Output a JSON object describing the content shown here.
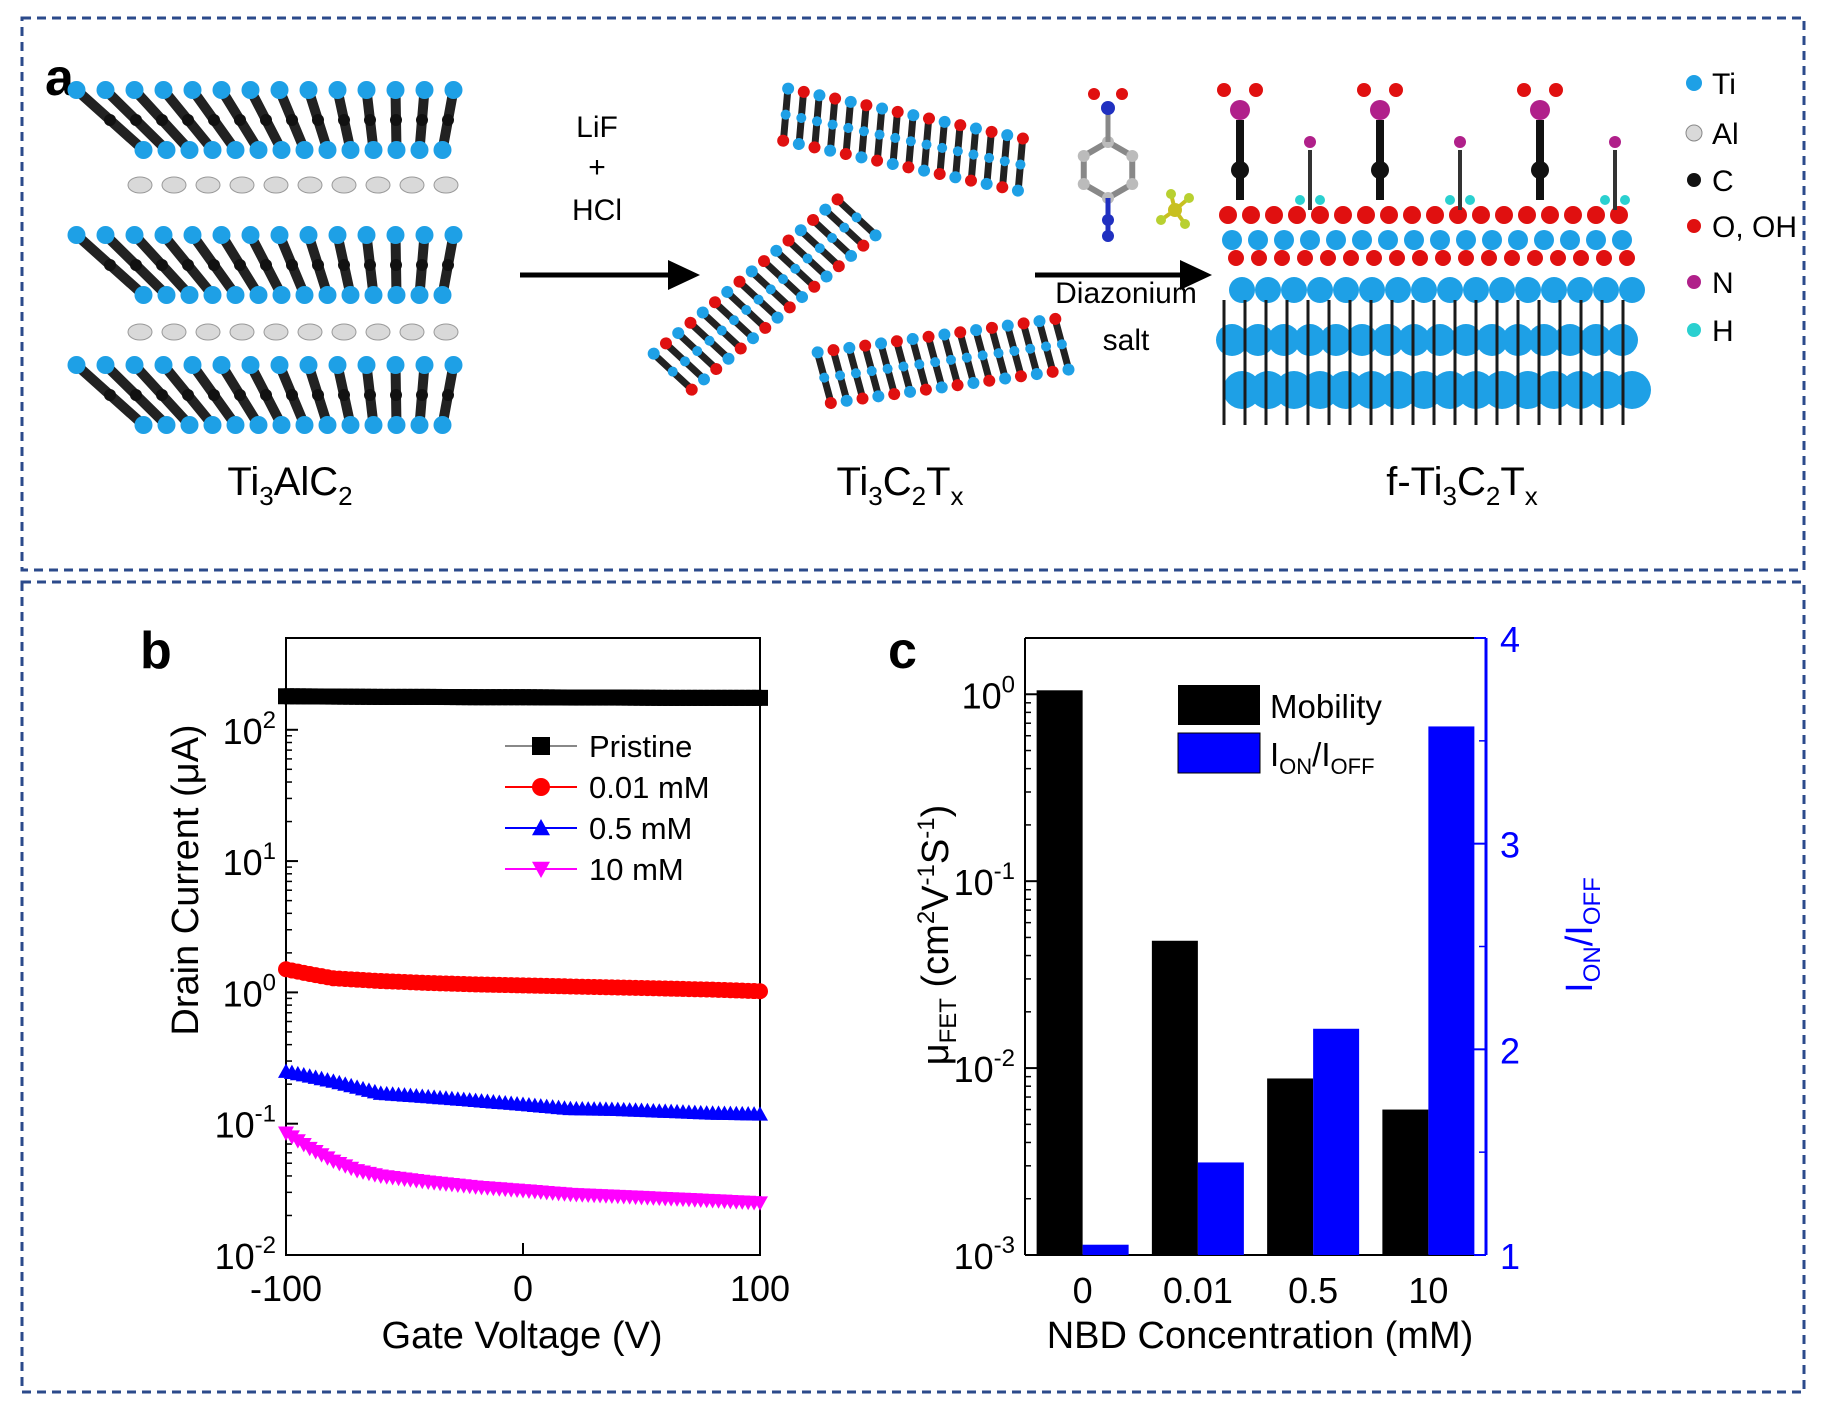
{
  "colors": {
    "frame": "#2b4a8b",
    "ti": "#1ea0e6",
    "al": "#d9d9d9",
    "c": "#111111",
    "o": "#e01010",
    "n": "#b0208a",
    "h": "#2ad0d0",
    "pristine": "#000000",
    "c001": "#ff0000",
    "c05": "#0000ff",
    "c10": "#ff00ff",
    "mobility": "#000000",
    "onoff": "#0000ff"
  },
  "panel_a": {
    "label": "a",
    "step1": {
      "line1": "LiF",
      "line2": "+",
      "line3": "HCl"
    },
    "step2": {
      "line1": "Diazonium",
      "line2": "salt"
    },
    "materials": {
      "m1": {
        "base": "Ti",
        "sub1": "3",
        "mid": "AlC",
        "sub2": "2",
        "text": "Ti3AlC2"
      },
      "m2": {
        "base": "Ti",
        "sub1": "3",
        "mid": "C",
        "sub2": "2",
        "mid2": "T",
        "sub3": "x",
        "text": "Ti3C2Tx"
      },
      "m3": {
        "base": "f-Ti",
        "sub1": "3",
        "mid": "C",
        "sub2": "2",
        "mid2": "T",
        "sub3": "x",
        "text": "f-Ti3C2Tx"
      }
    },
    "legend": [
      {
        "label": "Ti",
        "color": "#1ea0e6"
      },
      {
        "label": "Al",
        "color": "#d9d9d9"
      },
      {
        "label": "C",
        "color": "#111111"
      },
      {
        "label": "O, OH",
        "color": "#e01010"
      },
      {
        "label": "N",
        "color": "#b0208a"
      },
      {
        "label": "H",
        "color": "#2ad0d0"
      }
    ]
  },
  "chart_data": [
    {
      "panel": "b",
      "type": "line",
      "label": "b",
      "title": "",
      "xlabel": "Gate Voltage (V)",
      "ylabel": "Drain Current (μA)",
      "yscale": "log",
      "xlim": [
        -100,
        100
      ],
      "ylim": [
        0.01,
        500
      ],
      "xticks": [
        -100,
        0,
        100
      ],
      "xtick_labels": [
        "-100",
        "0",
        "100"
      ],
      "yticks": [
        0.01,
        0.1,
        1,
        10,
        100
      ],
      "ytick_base": "10",
      "ytick_exponents": [
        "-2",
        "-1",
        "0",
        "1",
        "2"
      ],
      "legend_position": "top-right",
      "series": [
        {
          "name": "Pristine",
          "marker": "square",
          "color": "#000000",
          "x": [
            -100,
            -80,
            -60,
            -40,
            -20,
            0,
            20,
            40,
            60,
            80,
            100
          ],
          "y": [
            180,
            179,
            178,
            178,
            177,
            177,
            176,
            176,
            175,
            175,
            175
          ]
        },
        {
          "name": "0.01 mM",
          "marker": "circle",
          "color": "#ff0000",
          "x": [
            -100,
            -90,
            -80,
            -60,
            -40,
            -20,
            0,
            20,
            40,
            60,
            80,
            100
          ],
          "y": [
            1.5,
            1.38,
            1.28,
            1.22,
            1.18,
            1.15,
            1.13,
            1.11,
            1.09,
            1.07,
            1.05,
            1.02
          ]
        },
        {
          "name": "0.5 mM",
          "marker": "triangle-up",
          "color": "#0000ff",
          "x": [
            -100,
            -90,
            -80,
            -60,
            -40,
            -20,
            0,
            20,
            40,
            60,
            80,
            100
          ],
          "y": [
            0.25,
            0.23,
            0.21,
            0.17,
            0.16,
            0.15,
            0.14,
            0.13,
            0.128,
            0.124,
            0.12,
            0.118
          ]
        },
        {
          "name": "10 mM",
          "marker": "triangle-down",
          "color": "#ff00ff",
          "x": [
            -100,
            -90,
            -80,
            -70,
            -60,
            -40,
            -20,
            0,
            20,
            40,
            60,
            80,
            100
          ],
          "y": [
            0.085,
            0.065,
            0.052,
            0.044,
            0.04,
            0.036,
            0.033,
            0.031,
            0.029,
            0.028,
            0.027,
            0.026,
            0.025
          ]
        }
      ]
    },
    {
      "panel": "c",
      "type": "bar",
      "label": "c",
      "title": "",
      "xlabel": "NBD Concentration (mM)",
      "categories": [
        "0",
        "0.01",
        "0.5",
        "10"
      ],
      "ylabel_left": {
        "mu": "μ",
        "sub": "FET",
        "text1": " (cm",
        "sup1": "2",
        "text2": "V",
        "sup2": "-1",
        "text3": "S",
        "sup3": "-1",
        "text4": ")"
      },
      "ylabel_right": {
        "i1": "I",
        "sub1": "ON",
        "slash": "/I",
        "sub2": "OFF"
      },
      "left_yscale": "log",
      "left_ylim": [
        0.001,
        2
      ],
      "left_yticks": [
        0.001,
        0.01,
        0.1,
        1
      ],
      "left_tick_base": "10",
      "left_tick_exponents": [
        "-3",
        "-2",
        "-1",
        "0"
      ],
      "right_ylim": [
        1,
        4
      ],
      "right_yticks": [
        "1",
        "2",
        "3",
        "4"
      ],
      "legend_position": "top-center",
      "series": [
        {
          "name": "Mobility",
          "axis": "left",
          "color": "#000000",
          "values": [
            1.05,
            0.048,
            0.0088,
            0.006
          ]
        },
        {
          "name": "ION/IOFF",
          "axis": "right",
          "color": "#0000ff",
          "values": [
            1.05,
            1.45,
            2.1,
            3.57
          ],
          "legend": {
            "i1": "I",
            "sub1": "ON",
            "slash": "/I",
            "sub2": "OFF"
          }
        }
      ]
    }
  ]
}
